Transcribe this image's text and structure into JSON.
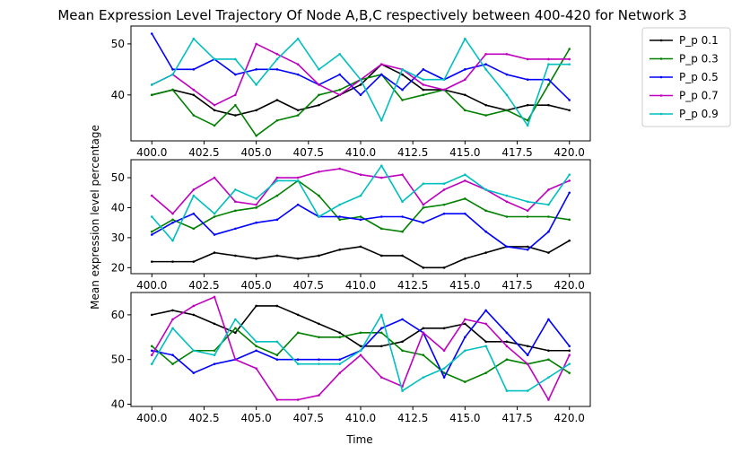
{
  "chart_data": {
    "type": "line",
    "title": "Mean Expression Level Trajectory Of Node A,B,C respectively between 400-420 for Network 3",
    "xlabel": "Time",
    "ylabel": "Mean expression level percentage",
    "x": [
      400,
      401,
      402,
      403,
      404,
      405,
      406,
      407,
      408,
      409,
      410,
      411,
      412,
      413,
      414,
      415,
      416,
      417,
      418,
      419,
      420
    ],
    "xlim": [
      399,
      421
    ],
    "xticks": [
      "400.0",
      "402.5",
      "405.0",
      "407.5",
      "410.0",
      "412.5",
      "415.0",
      "417.5",
      "420.0"
    ],
    "legend": {
      "placement": "outside-right",
      "entries": [
        "P_p 0.1",
        "P_p 0.3",
        "P_p 0.5",
        "P_p 0.7",
        "P_p 0.9"
      ]
    },
    "colors": [
      "#000000",
      "#008000",
      "#0000ff",
      "#bf00bf",
      "#00bfbf"
    ],
    "panels": [
      {
        "ylim": [
          31,
          53.5
        ],
        "yticks": [
          "40",
          "50"
        ],
        "series": [
          {
            "name": "P_p 0.1",
            "values": [
              40,
              41,
              40,
              37,
              36,
              37,
              39,
              37,
              38,
              40,
              42,
              46,
              44,
              41,
              41,
              40,
              38,
              37,
              38,
              38,
              37
            ]
          },
          {
            "name": "P_p 0.3",
            "values": [
              40,
              41,
              36,
              34,
              38,
              32,
              35,
              36,
              40,
              41,
              43,
              44,
              39,
              40,
              41,
              37,
              36,
              37,
              35,
              42,
              49
            ]
          },
          {
            "name": "P_p 0.5",
            "values": [
              52,
              45,
              45,
              47,
              44,
              45,
              45,
              44,
              42,
              44,
              40,
              44,
              41,
              45,
              43,
              45,
              46,
              44,
              43,
              43,
              39
            ]
          },
          {
            "name": "P_p 0.7",
            "values": [
              42,
              44,
              41,
              38,
              40,
              50,
              48,
              46,
              42,
              40,
              43,
              46,
              45,
              42,
              41,
              43,
              48,
              48,
              47,
              47,
              47
            ]
          },
          {
            "name": "P_p 0.9",
            "values": [
              42,
              44,
              51,
              47,
              47,
              42,
              47,
              51,
              45,
              48,
              43,
              35,
              45,
              43,
              43,
              51,
              45,
              40,
              34,
              46,
              46
            ]
          }
        ]
      },
      {
        "ylim": [
          18,
          56
        ],
        "yticks": [
          "20",
          "30",
          "40",
          "50"
        ],
        "series": [
          {
            "name": "P_p 0.1",
            "values": [
              22,
              22,
              22,
              25,
              24,
              23,
              24,
              23,
              24,
              26,
              27,
              24,
              24,
              20,
              20,
              23,
              25,
              27,
              27,
              25,
              29
            ]
          },
          {
            "name": "P_p 0.3",
            "values": [
              32,
              36,
              33,
              37,
              39,
              40,
              44,
              49,
              44,
              36,
              37,
              33,
              32,
              40,
              41,
              43,
              39,
              37,
              37,
              37,
              36
            ]
          },
          {
            "name": "P_p 0.5",
            "values": [
              31,
              35,
              38,
              31,
              33,
              35,
              36,
              41,
              37,
              37,
              36,
              37,
              37,
              35,
              38,
              38,
              32,
              27,
              26,
              32,
              45
            ]
          },
          {
            "name": "P_p 0.7",
            "values": [
              44,
              38,
              46,
              50,
              42,
              41,
              50,
              50,
              52,
              53,
              51,
              50,
              51,
              41,
              46,
              49,
              46,
              42,
              39,
              46,
              49
            ]
          },
          {
            "name": "P_p 0.9",
            "values": [
              37,
              29,
              44,
              38,
              46,
              43,
              49,
              49,
              37,
              41,
              44,
              54,
              42,
              48,
              48,
              51,
              46,
              44,
              42,
              41,
              51
            ]
          }
        ]
      },
      {
        "ylim": [
          39.5,
          65
        ],
        "yticks": [
          "40",
          "50",
          "60"
        ],
        "series": [
          {
            "name": "P_p 0.1",
            "values": [
              60,
              61,
              60,
              58,
              56,
              62,
              62,
              60,
              58,
              56,
              53,
              53,
              54,
              57,
              57,
              58,
              54,
              54,
              53,
              52,
              52
            ]
          },
          {
            "name": "P_p 0.3",
            "values": [
              53,
              49,
              52,
              52,
              57,
              53,
              51,
              56,
              55,
              55,
              56,
              56,
              52,
              51,
              47,
              45,
              47,
              50,
              49,
              50,
              47
            ]
          },
          {
            "name": "P_p 0.5",
            "values": [
              52,
              51,
              47,
              49,
              50,
              52,
              50,
              50,
              50,
              50,
              52,
              57,
              59,
              56,
              46,
              55,
              61,
              56,
              51,
              59,
              53
            ]
          },
          {
            "name": "P_p 0.7",
            "values": [
              51,
              59,
              62,
              64,
              50,
              48,
              41,
              41,
              42,
              47,
              51,
              46,
              44,
              56,
              52,
              59,
              58,
              53,
              49,
              41,
              51
            ]
          },
          {
            "name": "P_p 0.9",
            "values": [
              49,
              57,
              52,
              51,
              59,
              54,
              54,
              49,
              49,
              49,
              52,
              60,
              43,
              46,
              48,
              52,
              53,
              43,
              43,
              46,
              49
            ]
          }
        ]
      }
    ]
  }
}
